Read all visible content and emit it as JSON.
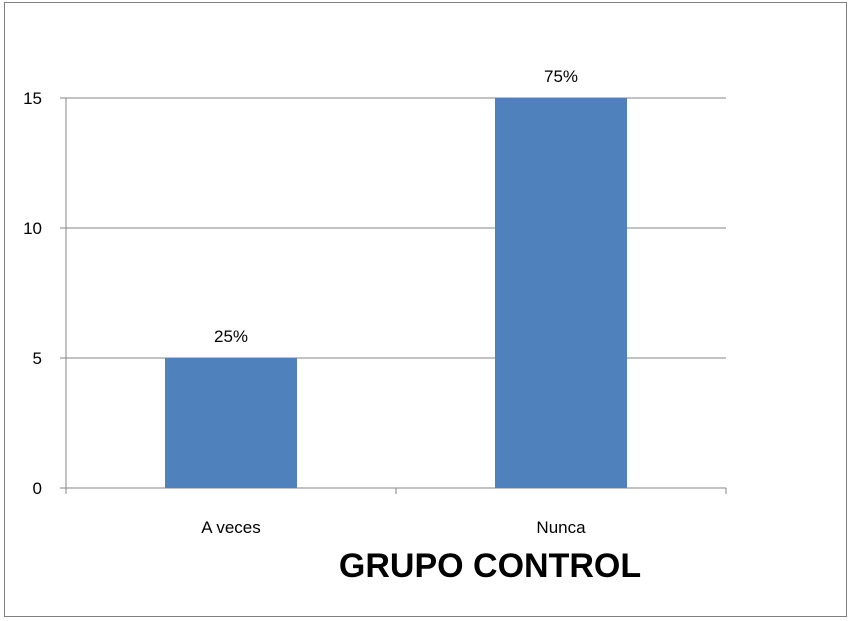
{
  "chart_data": {
    "type": "bar",
    "title": "GRUPO CONTROL",
    "categories": [
      "A veces",
      "Nunca"
    ],
    "series": [
      {
        "values": [
          5,
          15
        ],
        "data_labels": [
          "25%",
          "75%"
        ]
      }
    ],
    "ylim": [
      0,
      15
    ],
    "yticks": [
      0,
      5,
      10,
      15
    ],
    "ytick_labels": [
      "0",
      "5",
      "10",
      "15"
    ],
    "grid": true,
    "legend": "none",
    "colors": {
      "bar": "#4f81bd",
      "grid": "#868686",
      "axis": "#868686",
      "frame": "#808080"
    }
  }
}
